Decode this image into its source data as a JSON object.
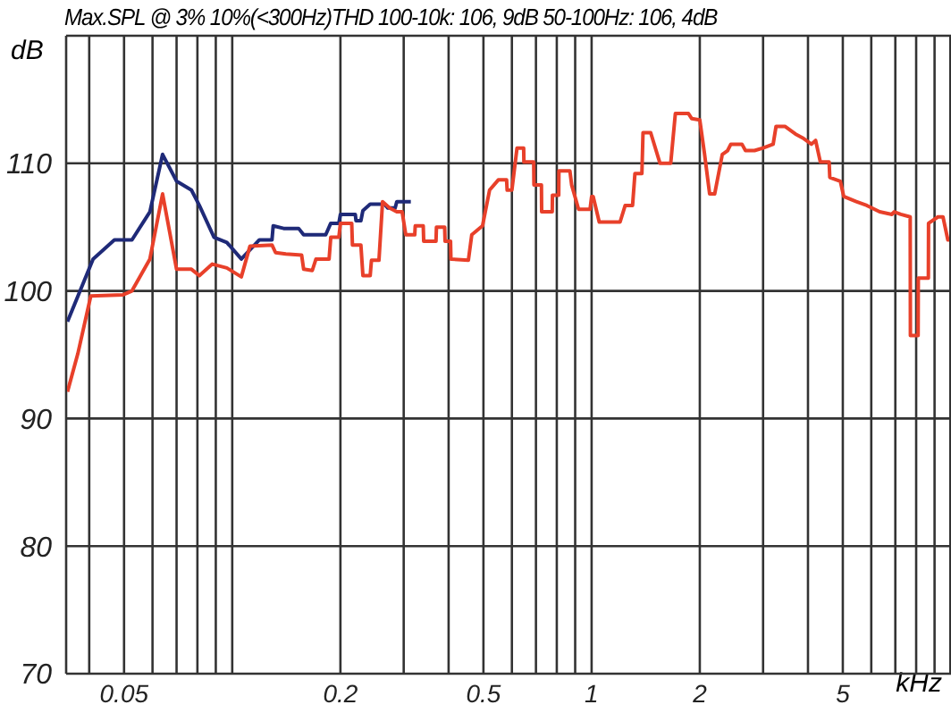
{
  "chart_data": {
    "type": "line",
    "title": "Max.SPL @ 3% 10%(<300Hz)THD 100-10k: 106, 9dB 50-100Hz: 106, 4dB",
    "xlabel": "kHz",
    "ylabel": "dB",
    "log": "x",
    "grid": true,
    "xlim": [
      0.0345,
      10
    ],
    "ylim": [
      70,
      120
    ],
    "yticks": [
      70,
      80,
      90,
      100,
      110
    ],
    "xticks": [
      {
        "value": 0.04,
        "label": null
      },
      0.05,
      {
        "value": 0.06,
        "label": null
      },
      {
        "value": 0.07,
        "label": null
      },
      {
        "value": 0.08,
        "label": null
      },
      {
        "value": 0.09,
        "label": null
      },
      {
        "value": 0.1,
        "label": null
      },
      0.2,
      {
        "value": 0.3,
        "label": null
      },
      {
        "value": 0.4,
        "label": null
      },
      0.5,
      {
        "value": 0.6,
        "label": null
      },
      {
        "value": 0.7,
        "label": null
      },
      {
        "value": 0.8,
        "label": null
      },
      {
        "value": 0.9,
        "label": null
      },
      1,
      2,
      {
        "value": 3,
        "label": null
      },
      {
        "value": 4,
        "label": null
      },
      5,
      {
        "value": 6,
        "label": null
      },
      {
        "value": 7,
        "label": null
      },
      {
        "value": 8,
        "label": null
      },
      {
        "value": 9,
        "label": null
      }
    ],
    "series": [
      {
        "color": "#1f2a78",
        "x": [
          0.0348,
          0.041,
          0.047,
          0.0526,
          0.059,
          0.064,
          0.07,
          0.077,
          0.081,
          0.089,
          0.0966,
          0.106,
          0.119,
          0.129,
          0.13,
          0.139,
          0.153,
          0.158,
          0.182,
          0.188,
          0.198,
          0.2,
          0.22,
          0.221,
          0.228,
          0.231,
          0.242,
          0.265,
          0.271,
          0.284,
          0.287,
          0.314
        ],
        "values": [
          97.6,
          102.5,
          104,
          104,
          106.2,
          110.7,
          108.6,
          107.9,
          106.7,
          104.2,
          103.8,
          102.5,
          104,
          104,
          105.1,
          104.9,
          104.9,
          104.4,
          104.4,
          105.3,
          105.3,
          106,
          106,
          105.5,
          105.5,
          106.3,
          106.8,
          106.8,
          106.5,
          106.5,
          107,
          107
        ]
      },
      {
        "color": "#e8402a",
        "x": [
          0.0348,
          0.0372,
          0.0404,
          0.0497,
          0.0526,
          0.059,
          0.064,
          0.07,
          0.077,
          0.081,
          0.088,
          0.0966,
          0.106,
          0.112,
          0.129,
          0.132,
          0.141,
          0.156,
          0.158,
          0.167,
          0.171,
          0.186,
          0.188,
          0.198,
          0.2,
          0.215,
          0.216,
          0.228,
          0.231,
          0.242,
          0.244,
          0.256,
          0.262,
          0.274,
          0.287,
          0.297,
          0.304,
          0.322,
          0.323,
          0.34,
          0.341,
          0.369,
          0.37,
          0.39,
          0.391,
          0.405,
          0.406,
          0.454,
          0.464,
          0.497,
          0.52,
          0.55,
          0.58,
          0.582,
          0.6,
          0.62,
          0.647,
          0.648,
          0.69,
          0.691,
          0.725,
          0.726,
          0.777,
          0.778,
          0.81,
          0.811,
          0.87,
          0.88,
          0.92,
          0.99,
          1.0,
          1.01,
          1.05,
          1.2,
          1.24,
          1.3,
          1.32,
          1.38,
          1.39,
          1.46,
          1.55,
          1.66,
          1.71,
          1.86,
          1.9,
          2.0,
          2.06,
          2.13,
          2.2,
          2.31,
          2.39,
          2.44,
          2.62,
          2.68,
          2.84,
          3.0,
          3.2,
          3.26,
          3.45,
          3.69,
          3.86,
          4.09,
          4.2,
          4.33,
          4.58,
          4.6,
          4.92,
          5.03,
          5.45,
          5.83,
          6.33,
          6.85,
          6.95,
          7.25,
          7.7,
          7.71,
          8.1,
          8.11,
          8.65,
          8.66,
          9.2,
          9.5,
          9.8,
          10
        ],
        "values": [
          92.1,
          95.1,
          99.6,
          99.7,
          100,
          102.5,
          107.6,
          101.7,
          101.7,
          101.2,
          102.1,
          101.8,
          101.1,
          103.5,
          103.6,
          103,
          102.9,
          102.8,
          101.7,
          101.6,
          102.5,
          102.5,
          104.2,
          104.2,
          105.3,
          105.3,
          103.6,
          103.6,
          101.2,
          101.2,
          102.4,
          102.4,
          107,
          106.5,
          106.2,
          106.2,
          104.4,
          104.4,
          105.1,
          105.1,
          103.9,
          103.9,
          105,
          105,
          103.9,
          103.9,
          102.5,
          102.4,
          104.4,
          105.1,
          107.9,
          108.7,
          108.7,
          107.9,
          107.9,
          111.2,
          111.2,
          110.1,
          110.1,
          108.3,
          108.3,
          106.2,
          106.2,
          107.5,
          107.5,
          109.4,
          109.4,
          108.3,
          106.4,
          106.4,
          107.4,
          107.4,
          105.4,
          105.4,
          106.7,
          106.7,
          109.2,
          109.2,
          112.4,
          112.4,
          110,
          110,
          113.9,
          113.9,
          113.5,
          113.4,
          110.8,
          107.6,
          107.6,
          110.7,
          111,
          111.5,
          111.5,
          111,
          111,
          111.2,
          111.5,
          112.9,
          112.9,
          112.3,
          112,
          111.5,
          111.8,
          110.1,
          110.1,
          108.9,
          108.6,
          107.4,
          107,
          106.7,
          106.2,
          106,
          106.2,
          106,
          105.8,
          96.5,
          96.5,
          101,
          101,
          105.3,
          105.8,
          105.8,
          104,
          104
        ]
      }
    ]
  }
}
